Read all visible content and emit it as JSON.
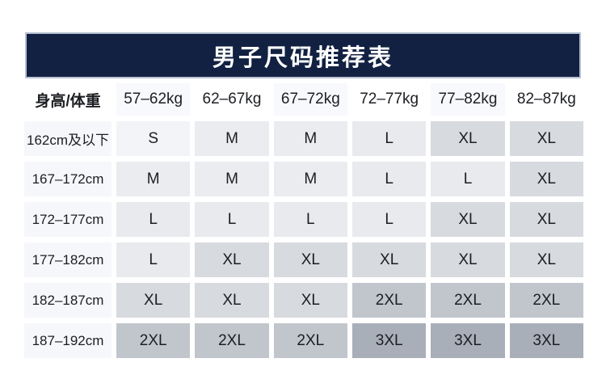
{
  "theme": {
    "navy": "#122142",
    "bar-border": "#b6c0d2",
    "title-text": "#ffffff",
    "text": "#1c1e22",
    "label-bg": "#f6f7fa",
    "head-alt": "#f8f9fc"
  },
  "size_bg": {
    "S": "#f2f4f7",
    "M": "#eaecf0",
    "L": "#e8eaee",
    "XL": "#d7dade",
    "2XL": "#c1c6cd",
    "3XL": "#a9afb9"
  },
  "chart_data": {
    "type": "table",
    "title": "男子尺码推荐表",
    "columns": [
      "身高/体重",
      "57–62kg",
      "62–67kg",
      "67–72kg",
      "72–77kg",
      "77–82kg",
      "82–87kg"
    ],
    "rows": [
      [
        "162cm及以下",
        "S",
        "M",
        "M",
        "L",
        "XL",
        "XL"
      ],
      [
        "167–172cm",
        "M",
        "M",
        "M",
        "L",
        "L",
        "XL"
      ],
      [
        "172–177cm",
        "L",
        "L",
        "L",
        "L",
        "XL",
        "XL"
      ],
      [
        "177–182cm",
        "L",
        "XL",
        "XL",
        "XL",
        "XL",
        "XL"
      ],
      [
        "182–187cm",
        "XL",
        "XL",
        "XL",
        "2XL",
        "2XL",
        "2XL"
      ],
      [
        "187–192cm",
        "2XL",
        "2XL",
        "2XL",
        "3XL",
        "3XL",
        "3XL"
      ]
    ]
  }
}
